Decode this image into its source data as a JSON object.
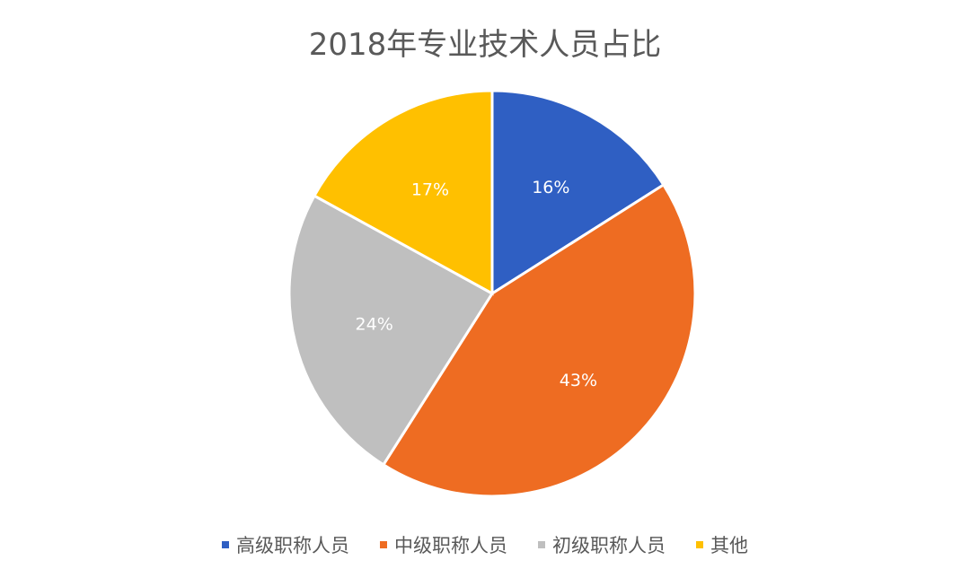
{
  "chart_data": {
    "type": "pie",
    "title": "2018年专业技术人员占比",
    "categories": [
      "高级职称人员",
      "中级职称人员",
      "初级职称人员",
      "其他"
    ],
    "values": [
      16,
      43,
      24,
      17
    ],
    "labels": [
      "16%",
      "43%",
      "24%",
      "17%"
    ],
    "colors": [
      "#2F5FC3",
      "#EE6C22",
      "#BFBFBF",
      "#FFC000"
    ],
    "start_angle": "12 o'clock",
    "direction": "clockwise",
    "legend_position": "bottom"
  }
}
